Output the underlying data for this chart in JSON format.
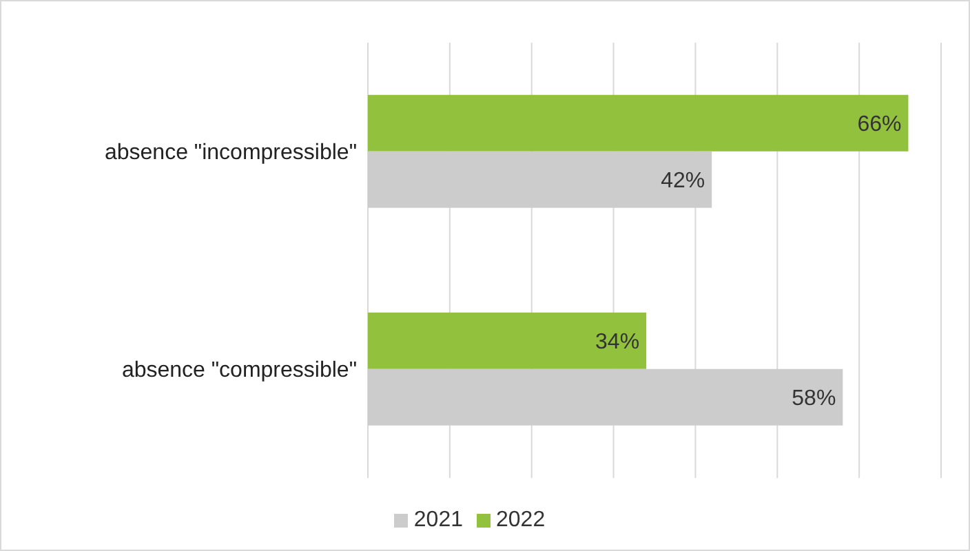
{
  "chart_data": {
    "type": "bar",
    "orientation": "horizontal",
    "categories": [
      "absence \"incompressible\"",
      "absence \"compressible\""
    ],
    "series": [
      {
        "name": "2022",
        "color": "#92c13e",
        "values": [
          66,
          34
        ],
        "value_labels": [
          "66%",
          "34%"
        ]
      },
      {
        "name": "2021",
        "color": "#cccccc",
        "values": [
          42,
          58
        ],
        "value_labels": [
          "42%",
          "58%"
        ]
      }
    ],
    "xlim": [
      0,
      70
    ],
    "xticks": [
      {
        "value": 0,
        "label": null
      },
      {
        "value": 10,
        "label": null
      },
      {
        "value": 20,
        "label": null
      },
      {
        "value": 30,
        "label": null
      },
      {
        "value": 40,
        "label": null
      },
      {
        "value": 50,
        "label": null
      },
      {
        "value": 60,
        "label": null
      },
      {
        "value": 70,
        "label": null
      }
    ],
    "tick_labels": "y",
    "grid": "x",
    "legend": "bottom"
  }
}
